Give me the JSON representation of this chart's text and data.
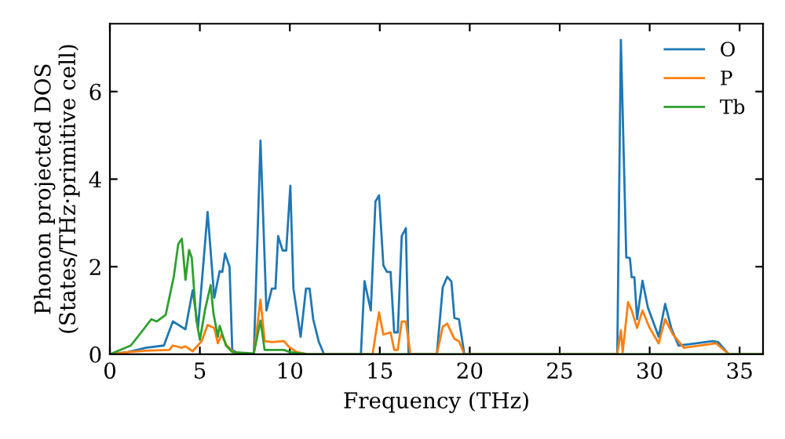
{
  "chart_data": {
    "type": "line",
    "xlabel": "Frequency (THz)",
    "ylabel": "Phonon projected DOS\n(States/THz·primitive cell)",
    "xlim": [
      0,
      36.3
    ],
    "ylim": [
      0,
      7.55
    ],
    "xticks": [
      0,
      5,
      10,
      15,
      20,
      25,
      30,
      35
    ],
    "yticks": [
      0,
      2,
      4,
      6
    ],
    "grid": false,
    "legend": "top right",
    "marker": "none",
    "line_style": "solid",
    "series": [
      {
        "name": "O",
        "color": "#1f77b4",
        "x": [
          0,
          1,
          2,
          3,
          3.5,
          4.2,
          4.6,
          4.9,
          5.43,
          5.8,
          6.1,
          6.25,
          6.4,
          6.65,
          6.8,
          7.2,
          8.0,
          8.37,
          8.7,
          9.0,
          9.2,
          9.35,
          9.6,
          9.8,
          10.03,
          10.2,
          10.6,
          10.9,
          11.1,
          11.3,
          11.6,
          11.9,
          13.95,
          14.15,
          14.5,
          14.76,
          14.96,
          15.2,
          15.4,
          15.6,
          15.8,
          16.0,
          16.22,
          16.45,
          16.6,
          18.17,
          18.5,
          18.75,
          18.98,
          19.15,
          19.4,
          19.7,
          28.2,
          28.4,
          28.7,
          28.9,
          29.0,
          29.15,
          29.3,
          29.6,
          29.9,
          30.5,
          30.86,
          31.2,
          31.6,
          32.2,
          33.5,
          33.8,
          34.4,
          36.3
        ],
        "values": [
          0,
          0.05,
          0.15,
          0.2,
          0.75,
          0.57,
          1.46,
          0.6,
          3.25,
          1.29,
          1.9,
          1.88,
          2.3,
          2.0,
          0.1,
          0,
          0,
          4.88,
          1.0,
          1.5,
          1.5,
          2.7,
          2.37,
          2.37,
          3.85,
          1.5,
          0.4,
          1.5,
          1.5,
          0.8,
          0.3,
          0,
          0,
          1.67,
          1.0,
          3.49,
          3.63,
          2.03,
          1.88,
          1.88,
          0.5,
          0.5,
          2.7,
          2.88,
          0,
          0,
          1.53,
          1.77,
          1.66,
          0.83,
          0.8,
          0,
          0,
          7.18,
          2.21,
          2.2,
          1.76,
          1.76,
          0.8,
          1.68,
          1.07,
          0.4,
          1.15,
          0.6,
          0.2,
          0.23,
          0.3,
          0.28,
          0,
          0
        ]
      },
      {
        "name": "P",
        "color": "#ff7f0e",
        "x": [
          0,
          1,
          2,
          3.3,
          3.5,
          4.0,
          4.2,
          4.6,
          5.1,
          5.43,
          5.8,
          6.0,
          6.2,
          6.5,
          6.9,
          8.0,
          8.37,
          8.6,
          9.0,
          9.67,
          10.0,
          10.4,
          11.0,
          14.6,
          14.96,
          15.2,
          15.6,
          15.8,
          16.0,
          16.22,
          16.45,
          16.7,
          18.17,
          18.5,
          18.75,
          19.15,
          19.4,
          19.7,
          28.2,
          28.4,
          28.5,
          28.8,
          29.0,
          29.3,
          29.6,
          30.0,
          30.5,
          30.86,
          31.3,
          31.9,
          33.7,
          34.4,
          36.3
        ],
        "values": [
          0,
          0.05,
          0.08,
          0.1,
          0.2,
          0.15,
          0.18,
          0.07,
          0.3,
          0.67,
          0.6,
          0.25,
          0.45,
          0.2,
          0.04,
          0,
          1.25,
          0.3,
          0.28,
          0.3,
          0.15,
          0.05,
          0,
          0,
          0.96,
          0.45,
          0.5,
          0.1,
          0.1,
          0.75,
          0.75,
          0,
          0,
          0.63,
          0.7,
          0.35,
          0.3,
          0,
          0,
          0.55,
          0.05,
          1.19,
          1.0,
          0.6,
          1.0,
          0.6,
          0.25,
          0.8,
          0.45,
          0.15,
          0.25,
          0,
          0
        ]
      },
      {
        "name": "Tb",
        "color": "#2ca02c",
        "x": [
          0,
          1.16,
          1.74,
          2.3,
          2.6,
          3.1,
          3.55,
          3.8,
          4.0,
          4.2,
          4.4,
          4.55,
          4.8,
          5.0,
          5.3,
          5.6,
          5.75,
          6.0,
          6.1,
          6.45,
          6.8,
          8.0,
          8.37,
          8.6,
          9.67,
          10.0,
          11.0,
          36.3
        ],
        "values": [
          0,
          0.2,
          0.5,
          0.8,
          0.75,
          0.9,
          1.77,
          2.52,
          2.64,
          1.7,
          2.38,
          2.2,
          0.8,
          0.33,
          1.04,
          1.58,
          0.95,
          0.4,
          0.65,
          0.2,
          0.05,
          0.02,
          0.77,
          0.1,
          0.1,
          0.05,
          0,
          0
        ]
      }
    ]
  }
}
